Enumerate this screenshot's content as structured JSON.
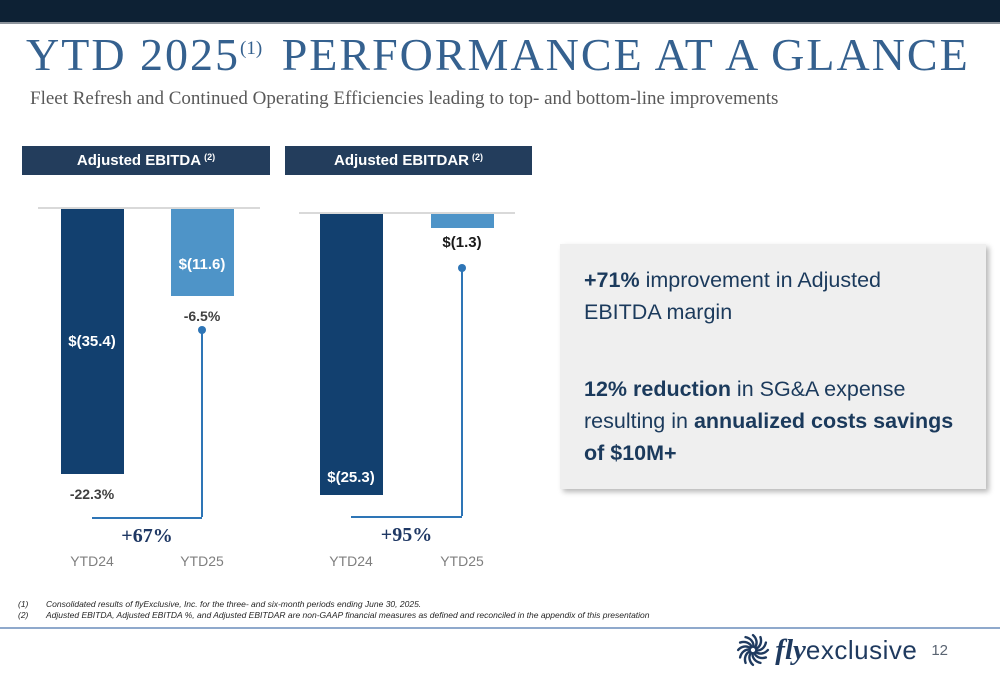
{
  "slide": {
    "title_part1": "YTD 2025",
    "title_superscript": "(1)",
    "title_part2": "PERFORMANCE AT A GLANCE",
    "subtitle": "Fleet Refresh and Continued Operating Efficiencies leading to top- and bottom-line improvements",
    "page_number": "12",
    "logo": {
      "fly": "fly",
      "exclusive": "exclusive"
    }
  },
  "chart_data": [
    {
      "type": "bar",
      "title": "Adjusted EBITDA",
      "title_superscript": "(2)",
      "categories": [
        "YTD24",
        "YTD25"
      ],
      "values": [
        -35.4,
        -11.6
      ],
      "value_labels": [
        "$(35.4)",
        "$(11.6)"
      ],
      "margin_labels": [
        "-22.3%",
        "-6.5%"
      ],
      "change_label": "+67%",
      "ylim": [
        -40,
        0
      ],
      "grid": false,
      "legend": false
    },
    {
      "type": "bar",
      "title": "Adjusted EBITDAR",
      "title_superscript": "(2)",
      "categories": [
        "YTD24",
        "YTD25"
      ],
      "values": [
        -25.3,
        -1.3
      ],
      "value_labels": [
        "$(25.3)",
        "$(1.3)"
      ],
      "margin_labels": [
        null,
        null
      ],
      "change_label": "+95%",
      "ylim": [
        -28,
        0
      ],
      "grid": false,
      "legend": false
    }
  ],
  "callout": {
    "paragraphs": [
      {
        "segments": [
          {
            "text": "+71%",
            "bold": true
          },
          {
            "text": " improvement in Adjusted EBITDA margin",
            "bold": false
          }
        ]
      },
      {
        "segments": [
          {
            "text": "12% reduction",
            "bold": true
          },
          {
            "text": " in SG&A expense resulting in ",
            "bold": false
          },
          {
            "text": "annualized costs savings of $10M+",
            "bold": true
          }
        ]
      }
    ]
  },
  "footnotes": [
    {
      "marker": "(1)",
      "text": "Consolidated results of flyExclusive, Inc. for the three- and six-month periods ending June 30, 2025."
    },
    {
      "marker": "(2)",
      "text": "Adjusted EBITDA, Adjusted EBITDA %, and Adjusted EBITDAR are non-GAAP financial measures as defined and reconciled in the appendix of this presentation"
    }
  ],
  "colors": {
    "top_bar": "#0D2134",
    "title": "#35618F",
    "subtitle": "#595959",
    "header_bg": "#233D5C",
    "bar_dark": "#12406F",
    "bar_light": "#4E94C8",
    "connector": "#2E75B6",
    "change_label": "#1F3864",
    "category_label": "#7F7F7F",
    "margin_label": "#404040",
    "callout_bg": "#EFEFEF",
    "callout_text": "#1B3A5C",
    "divider": "#8FA9CC",
    "logo": "#1F3A5F",
    "footnote": "#262626"
  }
}
